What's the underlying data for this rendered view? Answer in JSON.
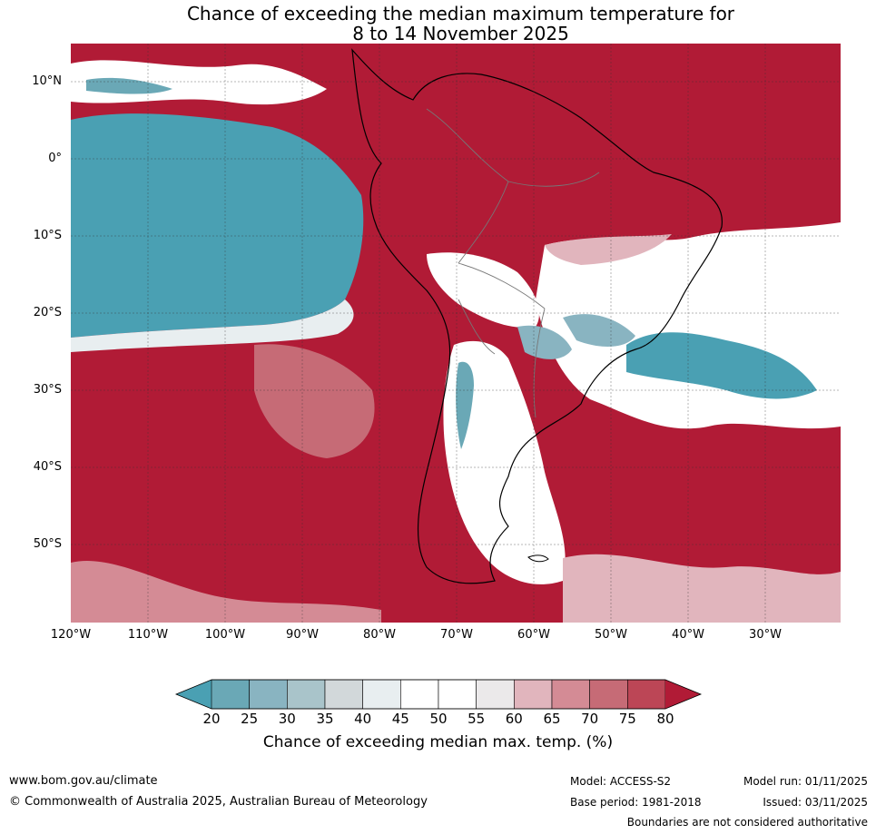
{
  "title": {
    "line1": "Chance of exceeding the median maximum temperature for",
    "line2": "8 to 14 November 2025"
  },
  "map": {
    "lat_labels": [
      "10°N",
      "0°",
      "10°S",
      "20°S",
      "30°S",
      "40°S",
      "50°S"
    ],
    "lon_labels": [
      "120°W",
      "110°W",
      "100°W",
      "90°W",
      "80°W",
      "70°W",
      "60°W",
      "50°W",
      "40°W",
      "30°W"
    ],
    "colors": {
      "high": "#b11b36",
      "low": "#4aa0b3"
    }
  },
  "colorbar": {
    "labels": [
      "20",
      "25",
      "30",
      "35",
      "40",
      "45",
      "50",
      "55",
      "60",
      "65",
      "70",
      "75",
      "80"
    ],
    "colors": [
      "#6aa8b6",
      "#89b4c1",
      "#a9c4ca",
      "#d2d8da",
      "#e8eef0",
      "#ffffff",
      "#ffffff",
      "#ebe9ea",
      "#e1b5bd",
      "#d48b95",
      "#c66b76",
      "#bc4656"
    ],
    "below_color": "#4aa0b3",
    "above_color": "#b11b36",
    "title": "Chance of exceeding median max. temp. (%)"
  },
  "footer": {
    "website": "www.bom.gov.au/climate",
    "copyright": "© Commonwealth of Australia 2025, Australian Bureau of Meteorology",
    "model": "Model: ACCESS-S2",
    "base_period": "Base period: 1981-2018",
    "model_run": "Model run: 01/11/2025",
    "issued": "Issued: 03/11/2025",
    "disclaimer": "Boundaries are not considered authoritative"
  }
}
